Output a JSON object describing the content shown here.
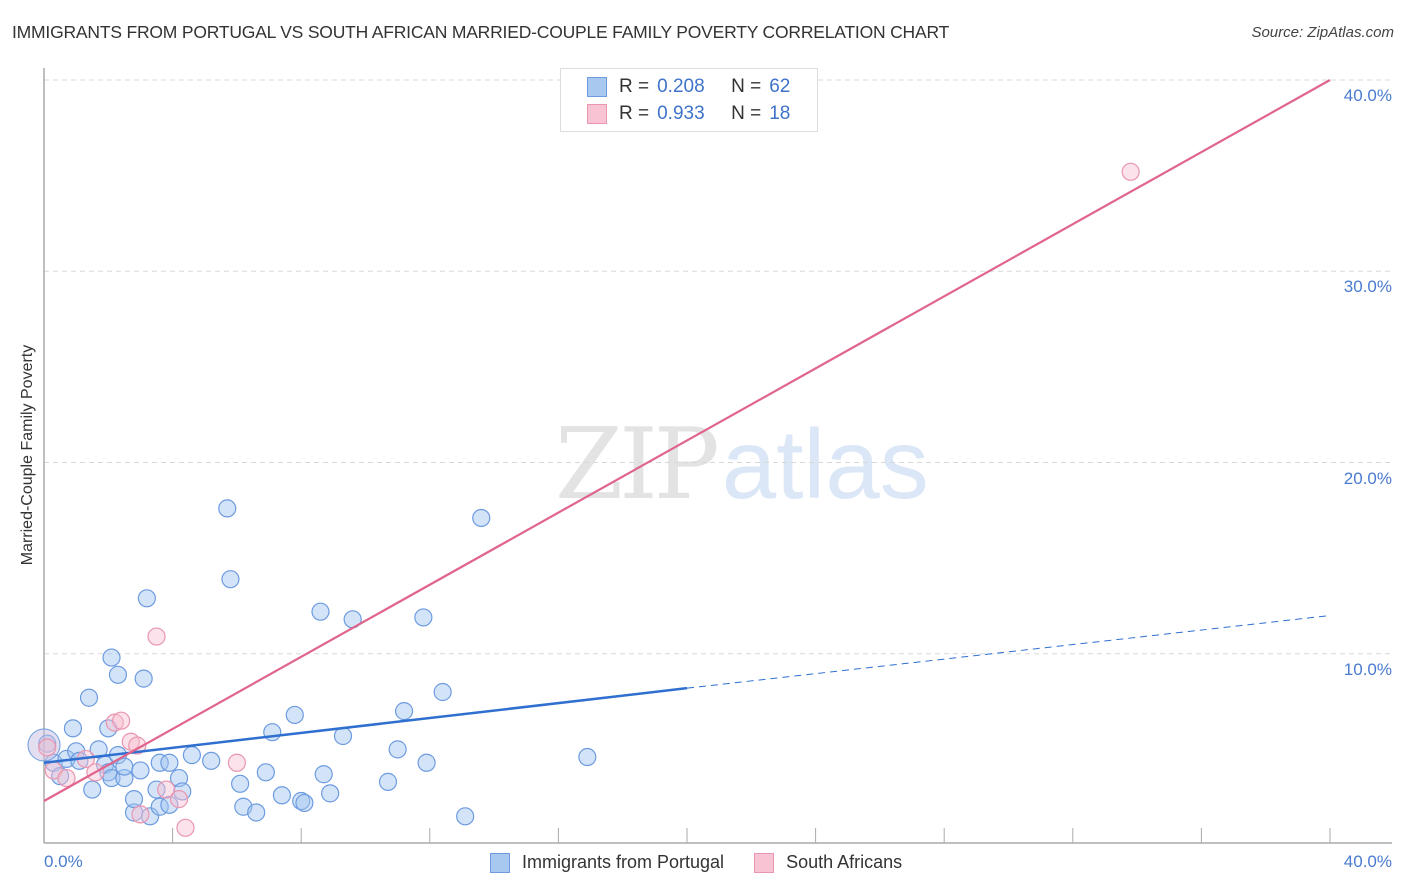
{
  "header": {
    "title": "IMMIGRANTS FROM PORTUGAL VS SOUTH AFRICAN MARRIED-COUPLE FAMILY POVERTY CORRELATION CHART",
    "source": "Source: ZipAtlas.com"
  },
  "watermark": {
    "zip": "ZIP",
    "atlas": "atlas"
  },
  "axes": {
    "ylabel": "Married-Couple Family Poverty",
    "y_ticks": [
      "40.0%",
      "30.0%",
      "20.0%",
      "10.0%"
    ],
    "x_ticks": {
      "left": "0.0%",
      "right": "40.0%"
    }
  },
  "legend_top": {
    "rows": [
      {
        "r_label": "R =",
        "r_value": "0.208",
        "n_label": "N =",
        "n_value": "62",
        "color": "#a9c8f0",
        "border": "#6d9be0"
      },
      {
        "r_label": "R =",
        "r_value": "0.933",
        "n_label": "N =",
        "n_value": "18",
        "color": "#f8c3d3",
        "border": "#e996b0"
      }
    ]
  },
  "legend_bottom": {
    "items": [
      {
        "label": "Immigrants from Portugal",
        "color": "#a9c8f0",
        "border": "#6d9be0"
      },
      {
        "label": "South Africans",
        "color": "#f8c3d3",
        "border": "#e996b0"
      }
    ]
  },
  "colors": {
    "blue_fill": "rgba(160,195,240,0.45)",
    "blue_stroke": "#6d9be0",
    "blue_line": "#2f6fd0",
    "pink_fill": "rgba(248,190,208,0.45)",
    "pink_stroke": "#e996b0",
    "pink_line": "#e0648b",
    "tick_label": "#4a7bd0",
    "grid": "#d8d8d8"
  },
  "chart_data": {
    "type": "scatter",
    "title": "IMMIGRANTS FROM PORTUGAL VS SOUTH AFRICAN MARRIED-COUPLE FAMILY POVERTY CORRELATION CHART",
    "xlabel": "Immigrants from Portugal",
    "ylabel": "Married-Couple Family Poverty",
    "xlim": [
      0,
      40
    ],
    "ylim": [
      0,
      40
    ],
    "x_tick_labels": [
      "0.0%",
      "40.0%"
    ],
    "y_tick_labels": [
      "10.0%",
      "20.0%",
      "30.0%",
      "40.0%"
    ],
    "grid": true,
    "legend_position": "bottom",
    "series": [
      {
        "name": "Immigrants from Portugal",
        "R": 0.208,
        "N": 62,
        "trend": {
          "x0": 0,
          "y0": 4.3,
          "x1": 20,
          "y1": 8.2,
          "dashed_to": {
            "x": 40,
            "y": 12.0
          }
        },
        "points": [
          [
            0.1,
            5.3
          ],
          [
            0.3,
            4.3
          ],
          [
            0.5,
            3.6
          ],
          [
            0.7,
            4.5
          ],
          [
            0.9,
            6.1
          ],
          [
            1.0,
            4.9
          ],
          [
            1.1,
            4.4
          ],
          [
            1.4,
            7.7
          ],
          [
            1.5,
            2.9
          ],
          [
            1.7,
            5.0
          ],
          [
            1.9,
            4.2
          ],
          [
            2.0,
            3.8
          ],
          [
            2.0,
            6.1
          ],
          [
            2.1,
            3.5
          ],
          [
            2.1,
            9.8
          ],
          [
            2.3,
            4.7
          ],
          [
            2.3,
            8.9
          ],
          [
            2.5,
            3.5
          ],
          [
            2.5,
            4.1
          ],
          [
            2.8,
            1.7
          ],
          [
            2.8,
            2.4
          ],
          [
            3.0,
            3.9
          ],
          [
            3.1,
            8.7
          ],
          [
            3.2,
            12.9
          ],
          [
            3.3,
            1.5
          ],
          [
            3.5,
            2.9
          ],
          [
            3.6,
            4.3
          ],
          [
            3.6,
            2.0
          ],
          [
            3.9,
            4.3
          ],
          [
            3.9,
            2.1
          ],
          [
            4.2,
            3.5
          ],
          [
            4.3,
            2.8
          ],
          [
            4.6,
            4.7
          ],
          [
            5.2,
            4.4
          ],
          [
            5.7,
            17.6
          ],
          [
            5.8,
            13.9
          ],
          [
            6.1,
            3.2
          ],
          [
            6.2,
            2.0
          ],
          [
            6.6,
            1.7
          ],
          [
            6.9,
            3.8
          ],
          [
            7.1,
            5.9
          ],
          [
            7.4,
            2.6
          ],
          [
            7.8,
            6.8
          ],
          [
            8.0,
            2.3
          ],
          [
            8.1,
            2.2
          ],
          [
            8.6,
            12.2
          ],
          [
            8.7,
            3.7
          ],
          [
            8.9,
            2.7
          ],
          [
            9.3,
            5.7
          ],
          [
            9.6,
            11.8
          ],
          [
            10.7,
            3.3
          ],
          [
            11.0,
            5.0
          ],
          [
            11.2,
            7.0
          ],
          [
            11.8,
            11.9
          ],
          [
            11.9,
            4.3
          ],
          [
            12.4,
            8.0
          ],
          [
            13.1,
            1.5
          ],
          [
            13.6,
            17.1
          ],
          [
            16.9,
            4.6
          ]
        ]
      },
      {
        "name": "South Africans",
        "R": 0.933,
        "N": 18,
        "trend": {
          "x0": 0,
          "y0": 2.3,
          "x1": 40,
          "y1": 40.0
        },
        "points": [
          [
            0.1,
            5.1
          ],
          [
            0.3,
            3.9
          ],
          [
            0.7,
            3.5
          ],
          [
            1.3,
            4.5
          ],
          [
            1.6,
            3.8
          ],
          [
            2.2,
            6.4
          ],
          [
            2.4,
            6.5
          ],
          [
            2.7,
            5.4
          ],
          [
            2.9,
            5.2
          ],
          [
            3.0,
            1.6
          ],
          [
            3.5,
            10.9
          ],
          [
            3.8,
            2.9
          ],
          [
            4.2,
            2.4
          ],
          [
            4.4,
            0.9
          ],
          [
            6.0,
            4.3
          ],
          [
            33.8,
            35.2
          ]
        ]
      }
    ]
  }
}
